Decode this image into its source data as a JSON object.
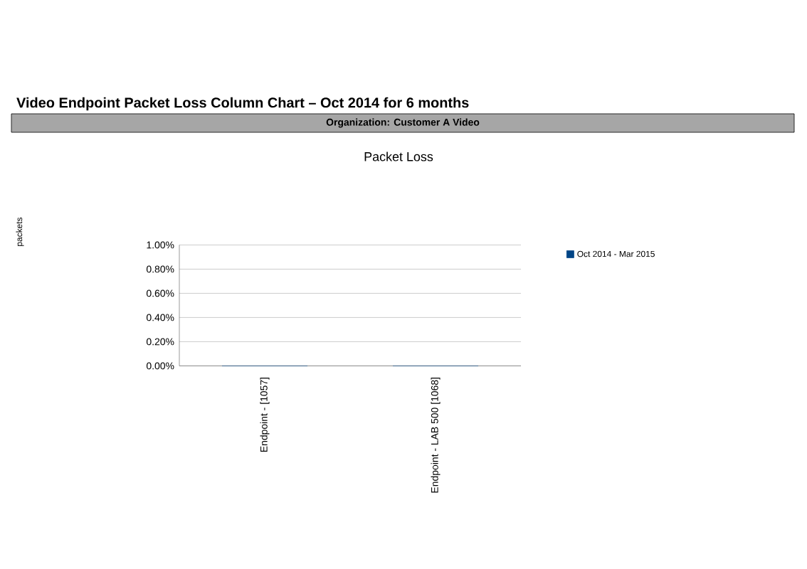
{
  "chart_data": {
    "type": "bar",
    "title": "Packet Loss",
    "annotations": [
      "Video Endpoint Packet Loss Column Chart – Oct 2014 for 6 months",
      "Organization: Customer A Video",
      "packets"
    ],
    "categories": [
      "Endpoint - [1057]",
      "Endpoint - LAB 500 [1068]"
    ],
    "series": [
      {
        "name": "Oct 2014 - Mar 2015",
        "color": "#004586",
        "values": [
          0,
          0
        ]
      }
    ],
    "ylim": [
      0,
      1
    ],
    "yticks": [
      {
        "value": 0,
        "label": "0.00%"
      },
      {
        "value": 0.2,
        "label": "0.20%"
      },
      {
        "value": 0.4,
        "label": "0.40%"
      },
      {
        "value": 0.6,
        "label": "0.60%"
      },
      {
        "value": 0.8,
        "label": "0.80%"
      },
      {
        "value": 1,
        "label": "1.00%"
      }
    ],
    "grid": "y",
    "legend": "top right"
  }
}
